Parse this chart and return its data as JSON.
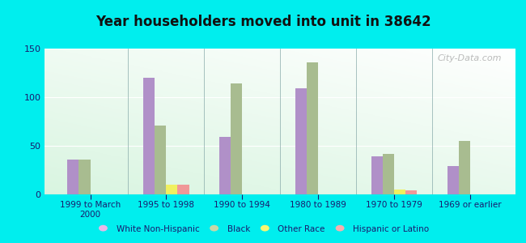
{
  "title": "Year householders moved into unit in 38642",
  "background_outer": "#00EEEE",
  "categories": [
    "1999 to March\n2000",
    "1995 to 1998",
    "1990 to 1994",
    "1980 to 1989",
    "1970 to 1979",
    "1969 or earlier"
  ],
  "series": {
    "White Non-Hispanic": [
      36,
      120,
      59,
      109,
      39,
      29
    ],
    "Black": [
      36,
      71,
      114,
      136,
      42,
      55
    ],
    "Other Race": [
      0,
      10,
      0,
      0,
      5,
      0
    ],
    "Hispanic or Latino": [
      0,
      10,
      0,
      0,
      4,
      0
    ]
  },
  "colors": {
    "White Non-Hispanic": "#b090c8",
    "Black": "#a8bc90",
    "Other Race": "#f0f060",
    "Hispanic or Latino": "#f09898"
  },
  "legend_colors": {
    "White Non-Hispanic": "#e8b8e8",
    "Black": "#c8d8a8",
    "Other Race": "#f8f870",
    "Hispanic or Latino": "#f8b0b0"
  },
  "ylim": [
    0,
    150
  ],
  "yticks": [
    0,
    50,
    100,
    150
  ],
  "bar_width": 0.15,
  "watermark": "City-Data.com"
}
